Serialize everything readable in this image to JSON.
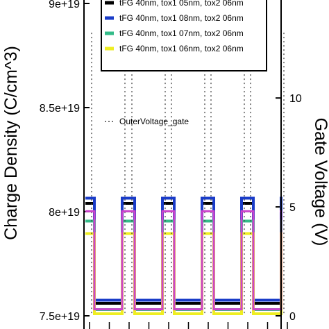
{
  "chart_data": {
    "type": "line",
    "xlabel": "",
    "ylabel": "Charge Density (C/cm^3)",
    "y2label": "Gate Voltage (V)",
    "ylim": [
      7.5e+19,
      9e+19
    ],
    "y2lim": [
      0,
      14.5
    ],
    "yticks": [
      "7.5e+19",
      "8e+19",
      "8.5e+19",
      "9e+19"
    ],
    "yticks_values": [
      7.5e+19,
      8e+19,
      8.5e+19,
      9e+19
    ],
    "y2ticks": [
      "0",
      "5",
      "10"
    ],
    "y2ticks_values": [
      0,
      5,
      10
    ],
    "pulse_count": 5,
    "pulse_period_fraction": 0.2,
    "pulse_high_fraction": 0.42,
    "grid": false,
    "legend_position": "top",
    "series": [
      {
        "name": "tFG 40nm, tox1 05nm, tox2 06nm",
        "color": "#000000",
        "style": "solid",
        "high": 8.04e+19,
        "low": 7.56e+19,
        "axis": "left"
      },
      {
        "name": "tFG 40nm, tox1 08nm, tox2 06nm",
        "color": "#1a3cc8",
        "style": "solid",
        "high": 8.065e+19,
        "low": 7.575e+19,
        "axis": "left"
      },
      {
        "name": "tFG 40nm, tox1 07nm, tox2 06nm",
        "color": "#33bb88",
        "style": "solid",
        "high": 7.955e+19,
        "low": 7.53e+19,
        "axis": "left"
      },
      {
        "name": "tFG 40nm, tox1 06nm, tox2 06nm",
        "color": "#eeee22",
        "style": "solid",
        "high": 7.895e+19,
        "low": 7.51e+19,
        "axis": "left"
      },
      {
        "name": "OuterVoltage_gate",
        "color": "#444444",
        "style": "dotted",
        "high": 13,
        "low": 0,
        "axis": "right"
      },
      {
        "name": "",
        "color": "#cc44cc",
        "style": "solid",
        "high": 4.8,
        "low": 0.3,
        "axis": "right"
      }
    ]
  }
}
